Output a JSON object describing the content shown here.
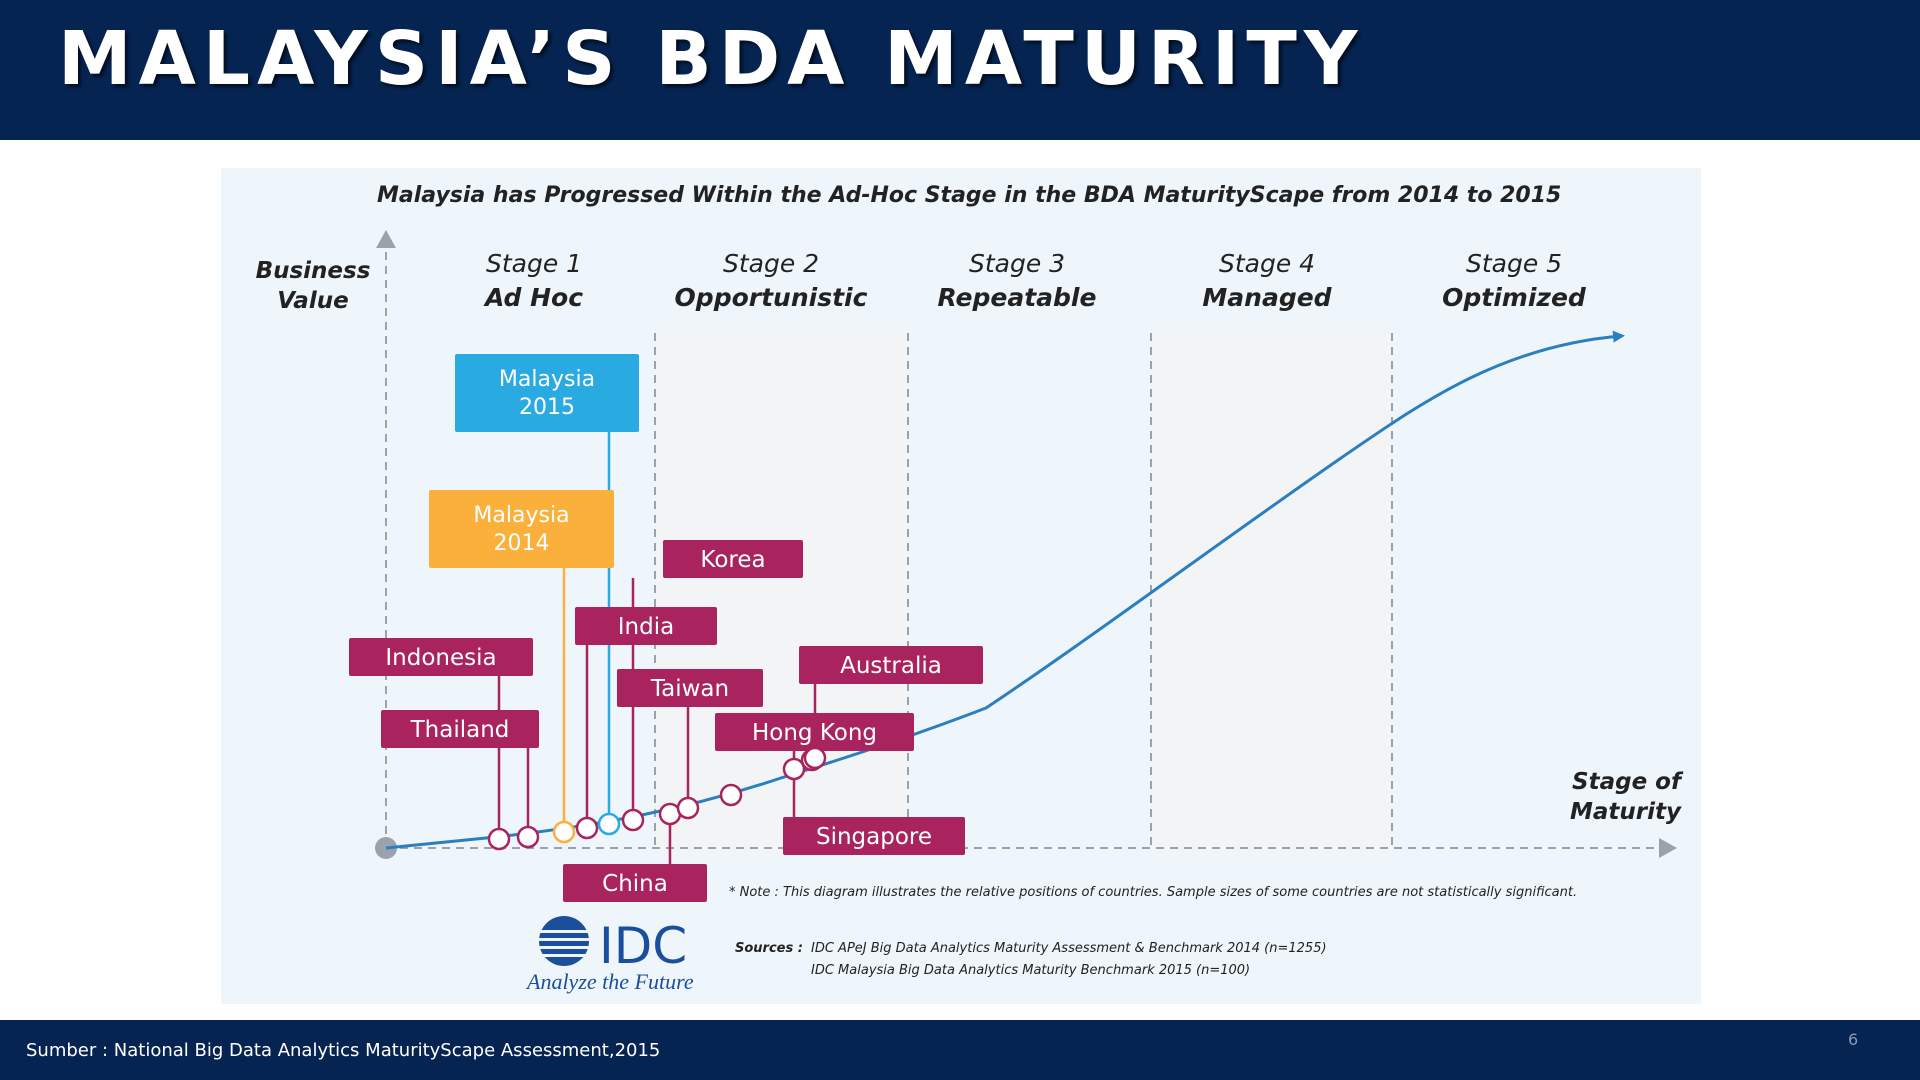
{
  "header": {
    "title": "MALAYSIA’S BDA MATURITY"
  },
  "footer": {
    "source": "Sumber : National Big Data Analytics MaturityScape Assessment,2015",
    "page_number": "6"
  },
  "diagram": {
    "title": "Malaysia has Progressed Within the Ad-Hoc Stage in the BDA MaturityScape from 2014 to 2015",
    "y_axis_label": [
      "Business",
      "Value"
    ],
    "x_axis_label": [
      "Stage of",
      "Maturity"
    ],
    "stages": [
      {
        "number": "Stage 1",
        "name": "Ad Hoc"
      },
      {
        "number": "Stage 2",
        "name": "Opportunistic"
      },
      {
        "number": "Stage 3",
        "name": "Repeatable"
      },
      {
        "number": "Stage 4",
        "name": "Managed"
      },
      {
        "number": "Stage 5",
        "name": "Optimized"
      }
    ],
    "countries": [
      {
        "label": [
          "Indonesia"
        ],
        "kind": "country"
      },
      {
        "label": [
          "Thailand"
        ],
        "kind": "country"
      },
      {
        "label": [
          "Malaysia",
          "2014"
        ],
        "kind": "malaysia-2014"
      },
      {
        "label": [
          "India"
        ],
        "kind": "country"
      },
      {
        "label": [
          "Malaysia",
          "2015"
        ],
        "kind": "malaysia-2015"
      },
      {
        "label": [
          "Korea"
        ],
        "kind": "country"
      },
      {
        "label": [
          "China"
        ],
        "kind": "country"
      },
      {
        "label": [
          "Taiwan"
        ],
        "kind": "country"
      },
      {
        "label": [
          "Hong Kong"
        ],
        "kind": "country"
      },
      {
        "label": [
          "Singapore"
        ],
        "kind": "country"
      },
      {
        "label": [
          "Australia"
        ],
        "kind": "country"
      }
    ],
    "note": "* Note : This diagram illustrates the relative positions of countries. Sample sizes of some countries are not statistically significant.",
    "sources_label": "Sources :",
    "sources": [
      "IDC APeJ Big Data Analytics Maturity Assessment & Benchmark 2014 (n=1255)",
      "IDC Malaysia Big Data Analytics Maturity Benchmark 2015 (n=100)"
    ],
    "logo": {
      "name": "IDC",
      "tagline": "Analyze the Future"
    }
  },
  "colors": {
    "country": "#a9245e",
    "malaysia_2014": "#fbb03b",
    "malaysia_2015": "#29abe2",
    "curve": "#2c7fbf",
    "panel": "#eef5fb",
    "header": "#062452"
  }
}
